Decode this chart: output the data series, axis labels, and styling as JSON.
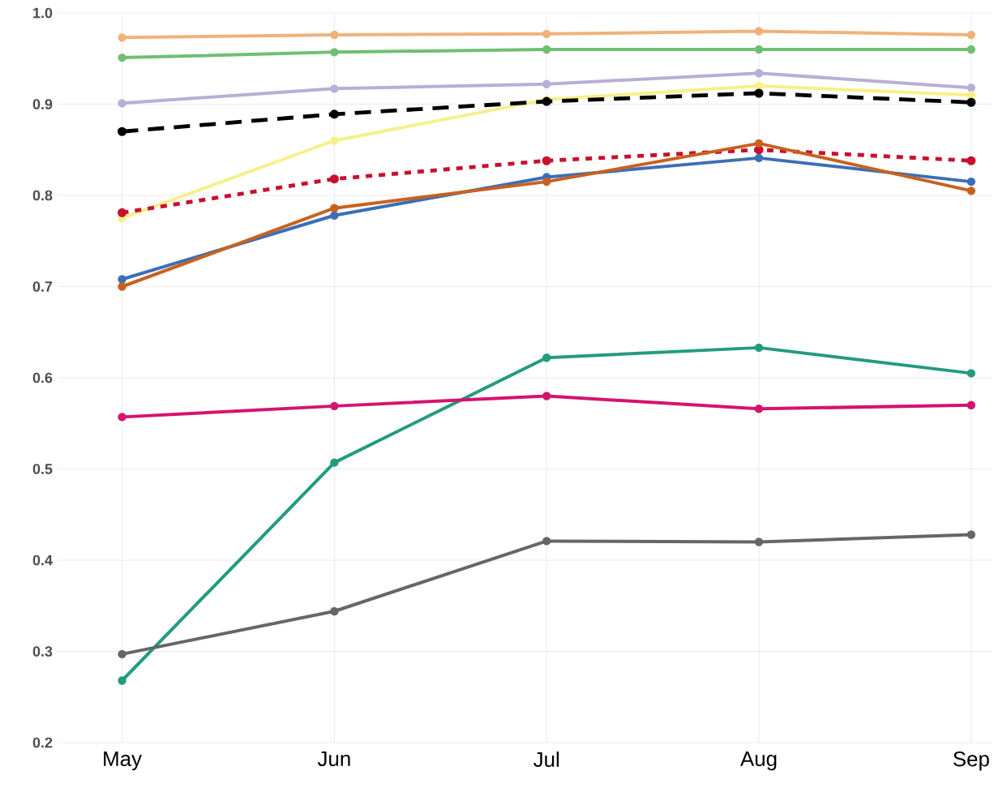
{
  "chart_data": {
    "type": "line",
    "categories": [
      "May",
      "Jun",
      "Jul",
      "Aug",
      "Sep"
    ],
    "ylim": [
      0.2,
      1.0
    ],
    "yticks": [
      0.2,
      0.3,
      0.4,
      0.5,
      0.6,
      0.7,
      0.8,
      0.9,
      {
        "value": 1.0,
        "label": "1.0"
      }
    ],
    "grid": true,
    "marker": "circle",
    "series": [
      {
        "color": "#f0b27a",
        "values": [
          0.973,
          0.976,
          0.977,
          0.98,
          0.976
        ]
      },
      {
        "color": "#6fbf73",
        "values": [
          0.951,
          0.957,
          0.96,
          0.96,
          0.96
        ]
      },
      {
        "color": "#b8aed6",
        "values": [
          0.901,
          0.917,
          0.922,
          0.934,
          0.918
        ]
      },
      {
        "color": "#f7f08a",
        "values": [
          0.775,
          0.86,
          0.905,
          0.92,
          0.91
        ]
      },
      {
        "color": "#000000",
        "line_style": "dashed",
        "values": [
          0.87,
          0.889,
          0.903,
          0.912,
          0.902
        ]
      },
      {
        "color": "#c8102e",
        "line_style": "dotted",
        "values": [
          0.781,
          0.818,
          0.838,
          0.85,
          0.838
        ]
      },
      {
        "color": "#3b6fb6",
        "values": [
          0.708,
          0.778,
          0.82,
          0.841,
          0.815
        ]
      },
      {
        "color": "#c8611e",
        "values": [
          0.7,
          0.786,
          0.815,
          0.857,
          0.805
        ]
      },
      {
        "color": "#239b7e",
        "values": [
          0.268,
          0.507,
          0.622,
          0.633,
          0.605
        ]
      },
      {
        "color": "#d4136f",
        "values": [
          0.557,
          0.569,
          0.58,
          0.566,
          0.57
        ]
      },
      {
        "color": "#666666",
        "values": [
          0.297,
          0.344,
          0.421,
          0.42,
          0.428
        ]
      }
    ]
  }
}
